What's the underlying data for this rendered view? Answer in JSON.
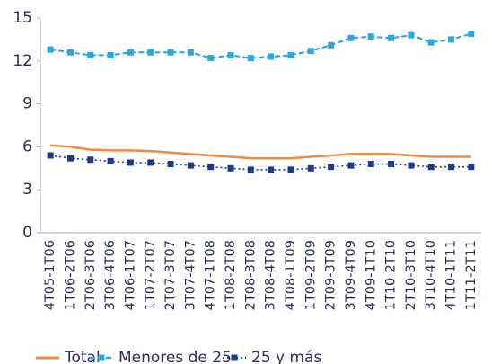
{
  "chart_data": {
    "type": "line",
    "categories": [
      "4T05-1T06",
      "1T06-2T06",
      "2T06-3T06",
      "3T06-4T06",
      "4T06-1T07",
      "1T07-2T07",
      "2T07-3T07",
      "3T07-4T07",
      "4T07-1T08",
      "1T08-2T08",
      "2T08-3T08",
      "3T08-4T08",
      "4T08-1T09",
      "1T09-2T09",
      "2T09-3T09",
      "3T09-4T09",
      "4T09-1T10",
      "1T10-2T10",
      "2T10-3T10",
      "3T10-4T10",
      "4T10-1T11",
      "1T11-2T11"
    ],
    "series": [
      {
        "name": "Total",
        "color": "#f08a3c",
        "values": [
          6.1,
          6.0,
          5.8,
          5.75,
          5.75,
          5.7,
          5.6,
          5.5,
          5.4,
          5.3,
          5.2,
          5.2,
          5.2,
          5.3,
          5.4,
          5.5,
          5.5,
          5.5,
          5.4,
          5.3,
          5.3,
          5.3
        ]
      },
      {
        "name": "Menores de 25",
        "color": "#29a8e0",
        "values": [
          12.8,
          12.6,
          12.4,
          12.4,
          12.6,
          12.6,
          12.6,
          12.6,
          12.2,
          12.4,
          12.2,
          12.3,
          12.4,
          12.7,
          13.1,
          13.6,
          13.7,
          13.6,
          13.8,
          13.3,
          13.5,
          13.9
        ]
      },
      {
        "name": "25  y más",
        "color": "#1b3a8a",
        "values": [
          5.4,
          5.2,
          5.1,
          5.0,
          4.9,
          4.9,
          4.8,
          4.7,
          4.6,
          4.5,
          4.4,
          4.4,
          4.4,
          4.5,
          4.6,
          4.7,
          4.8,
          4.8,
          4.7,
          4.6,
          4.6,
          4.6
        ]
      }
    ],
    "ylim": [
      0,
      15
    ],
    "yticks": [
      0,
      3,
      6,
      9,
      12,
      15
    ],
    "grid": false
  }
}
